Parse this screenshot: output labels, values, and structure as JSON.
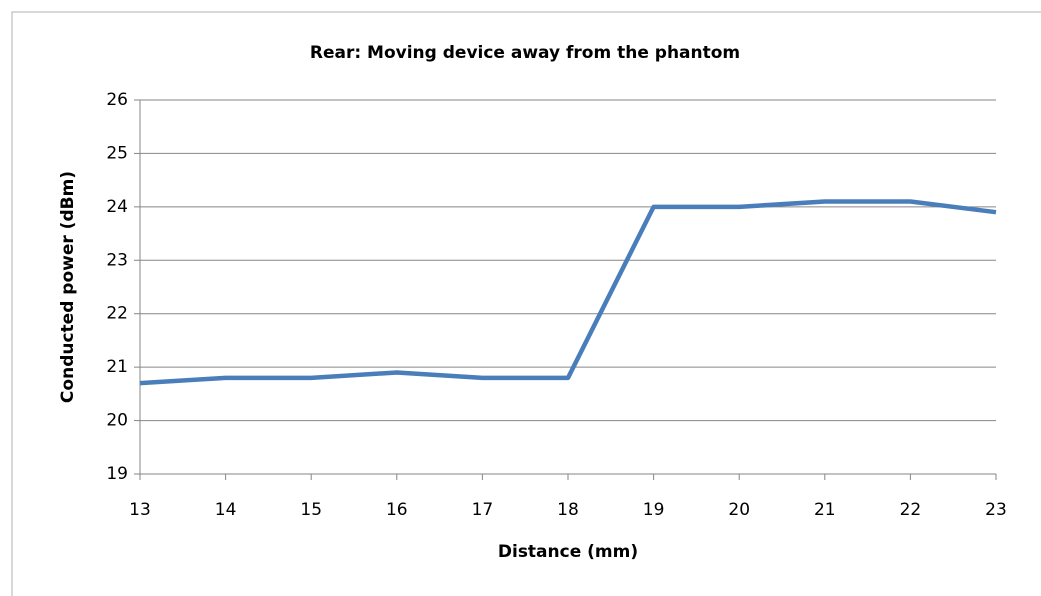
{
  "chart_data": {
    "type": "line",
    "title": "Rear: Moving device away from the phantom",
    "x_label": "Distance (mm)",
    "y_label": "Conducted power (dBm)",
    "x": [
      13,
      14,
      15,
      16,
      17,
      18,
      19,
      20,
      21,
      22,
      23
    ],
    "series": [
      {
        "name": "Conducted power",
        "color": "#4a7ebb",
        "values": [
          20.7,
          20.8,
          20.8,
          20.9,
          20.8,
          20.8,
          24.0,
          24.0,
          24.1,
          24.1,
          23.9
        ]
      }
    ],
    "xlim": [
      13,
      23
    ],
    "xticks": [
      13,
      14,
      15,
      16,
      17,
      18,
      19,
      20,
      21,
      22,
      23
    ],
    "ylim": [
      19,
      26
    ],
    "yticks": [
      19,
      20,
      21,
      22,
      23,
      24,
      25,
      26
    ],
    "grid": true
  }
}
